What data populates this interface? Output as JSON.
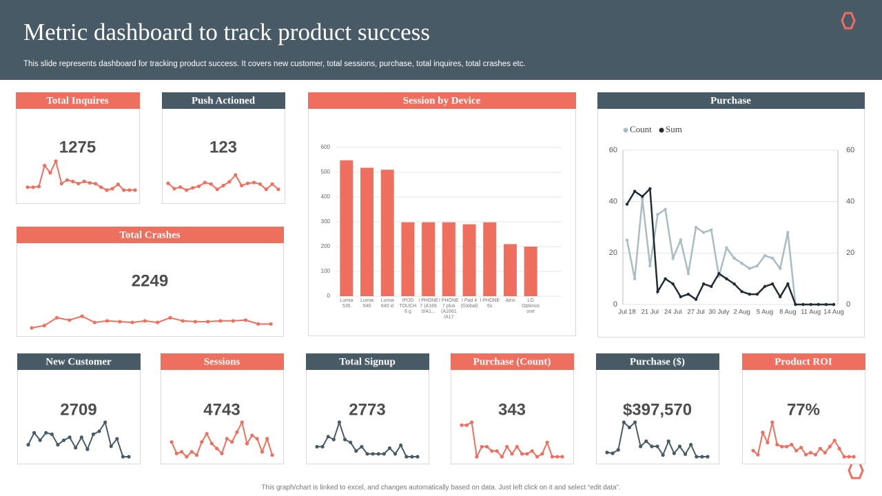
{
  "header": {
    "title": "Metric dashboard to track product success",
    "subtitle": "This slide represents dashboard for tracking product success. It covers new customer, total sessions, purchase, total inquires, total crashes etc."
  },
  "footer": "This graph/chart is linked to excel, and changes automatically based on data. Just left click on it and select “edit data”.",
  "chart_data": [
    {
      "type": "sparkline",
      "title": "Total Inquires",
      "header_color": "#ef6f5e",
      "color": "#ef6f5e",
      "kpi": 1275,
      "values": [
        10,
        10,
        11,
        40,
        30,
        46,
        15,
        20,
        18,
        15,
        18,
        16,
        15,
        10,
        6,
        8,
        14,
        6,
        6,
        6
      ]
    },
    {
      "type": "sparkline",
      "title": "Push Actioned",
      "header_color": "#475a66",
      "color": "#ef6f5e",
      "kpi": 123,
      "values": [
        13,
        6,
        8,
        4,
        7,
        9,
        14,
        12,
        5,
        10,
        15,
        24,
        10,
        13,
        14,
        12,
        5,
        12,
        5
      ]
    },
    {
      "type": "bar",
      "title": "Session by Device",
      "header_color": "#ef6f5e",
      "color": "#ef6f5e",
      "categories": [
        "Lumia 535",
        "Lumia 540",
        "Lumia 640 xl",
        "IPOD TOUCH 6 g",
        "I PHONE 7 (A166 0/A1...",
        "I PHONE 7 plus (A1661 /A17",
        "I Pad 4 (Global)",
        "I PHONE 6s",
        "Atrix",
        "LG Optimus one"
      ],
      "values": [
        548,
        518,
        510,
        298,
        298,
        298,
        290,
        298,
        210,
        200
      ],
      "ylim": [
        0,
        600
      ],
      "yticks": [
        0,
        100,
        200,
        300,
        400,
        500,
        600
      ],
      "grid": true
    },
    {
      "type": "line",
      "title": "Purchase",
      "header_color": "#475a66",
      "categories": [
        "Jul 18",
        null,
        null,
        "21 Jul",
        null,
        null,
        "24 Jul",
        null,
        null,
        "27 Jul",
        null,
        null,
        "30 July",
        null,
        null,
        "2 Aug",
        null,
        null,
        "5 Aug",
        null,
        null,
        "8 Aug",
        null,
        null,
        "11 Aug",
        null,
        null,
        "14 Aug"
      ],
      "series": [
        {
          "name": "Count",
          "color": "#a9bcc4",
          "values": [
            25,
            10,
            41,
            15,
            35,
            37,
            18,
            25,
            12,
            30,
            28,
            29,
            11,
            22,
            18,
            16,
            14,
            15,
            19,
            18,
            14,
            28,
            0,
            0,
            0,
            0,
            0,
            0
          ]
        },
        {
          "name": "Sum",
          "color": "#1f2d36",
          "values": [
            39,
            44,
            42,
            45,
            5,
            10,
            8,
            3,
            4,
            2,
            8,
            7,
            12,
            10,
            8,
            5,
            4,
            4,
            7,
            8,
            3,
            8,
            0,
            0,
            0,
            0,
            0,
            0
          ]
        }
      ],
      "ylim": [
        0,
        60
      ],
      "yticks": [
        0,
        20,
        40,
        60
      ],
      "y2lim": [
        0,
        60
      ],
      "y2ticks": [
        0,
        20,
        40,
        60
      ],
      "grid": true,
      "legend": "top-left"
    },
    {
      "type": "sparkline",
      "title": "Total Crashes",
      "header_color": "#ef6f5e",
      "color": "#ef6f5e",
      "kpi": 2249,
      "values": [
        5,
        8,
        18,
        15,
        20,
        12,
        14,
        13,
        12,
        14,
        12,
        18,
        14,
        13,
        13,
        14,
        14,
        15,
        10,
        10
      ]
    },
    {
      "type": "sparkline",
      "title": "New Customer",
      "header_color": "#475a66",
      "color": "#475a66",
      "kpi": 2709,
      "values": [
        24,
        40,
        30,
        40,
        38,
        24,
        30,
        34,
        20,
        34,
        18,
        38,
        42,
        54,
        22,
        32,
        8,
        8
      ]
    },
    {
      "type": "sparkline",
      "title": "Sessions",
      "header_color": "#ef6f5e",
      "color": "#ef6f5e",
      "kpi": 4743,
      "values": [
        18,
        11,
        12,
        9,
        12,
        10,
        18,
        23,
        17,
        14,
        11,
        20,
        18,
        24,
        30,
        17,
        22,
        20,
        12,
        20,
        10
      ]
    },
    {
      "type": "sparkline",
      "title": "Total Signup",
      "header_color": "#475a66",
      "color": "#475a66",
      "kpi": 2773,
      "values": [
        15,
        15,
        22,
        20,
        32,
        20,
        18,
        12,
        15,
        10,
        10,
        10,
        10,
        14,
        10,
        16,
        8,
        8,
        8
      ]
    },
    {
      "type": "sparkline",
      "title": "Purchase (Count)",
      "header_color": "#ef6f5e",
      "color": "#ef6f5e",
      "kpi": 343,
      "values": [
        30,
        30,
        32,
        8,
        15,
        15,
        12,
        12,
        8,
        15,
        10,
        15,
        10,
        10,
        12,
        8,
        10,
        18,
        8,
        8,
        8
      ]
    },
    {
      "type": "sparkline",
      "title": "Purchase ($)",
      "header_color": "#475a66",
      "color": "#475a66",
      "kpi": 397570,
      "kpi_label": "$397,570",
      "values": [
        17,
        16,
        20,
        52,
        46,
        52,
        24,
        30,
        24,
        24,
        14,
        30,
        16,
        24,
        15,
        26,
        12,
        12,
        12
      ]
    },
    {
      "type": "sparkline",
      "title": "Product ROI",
      "header_color": "#ef6f5e",
      "color": "#ef6f5e",
      "kpi": 77,
      "kpi_label": "77%",
      "values": [
        13,
        9,
        31,
        21,
        41,
        19,
        17,
        17,
        19,
        13,
        16,
        9,
        11,
        9,
        15,
        11,
        17,
        23,
        15,
        7,
        7,
        7
      ]
    }
  ]
}
